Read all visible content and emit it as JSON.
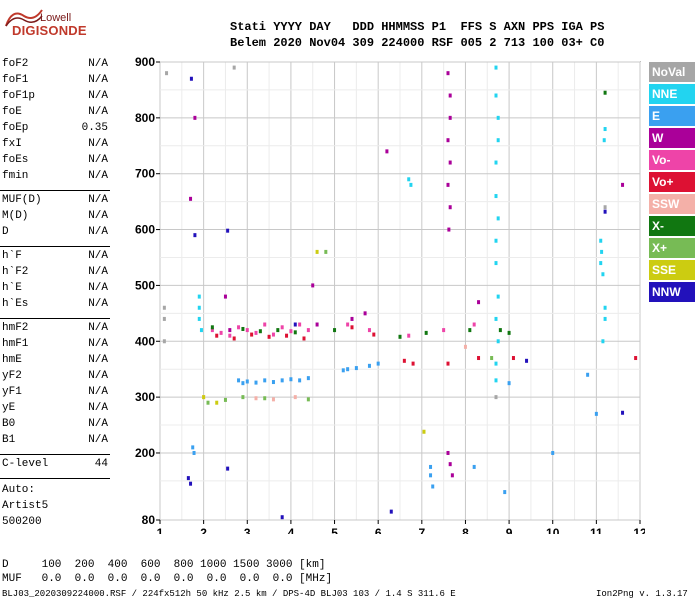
{
  "logo": {
    "line1": "Lowell",
    "line2": "DIGISONDE"
  },
  "header": {
    "line1": "Stati YYYY DAY   DDD HHMMSS P1  FFS S AXN PPS IGA PS",
    "line2": "Belem 2020 Nov04 309 224000 RSF 005 2 713 100 03+ C0"
  },
  "params": {
    "group1": [
      {
        "name": "foF2",
        "value": "N/A"
      },
      {
        "name": "foF1",
        "value": "N/A"
      },
      {
        "name": "foF1p",
        "value": "N/A"
      },
      {
        "name": "foE",
        "value": "N/A"
      },
      {
        "name": "foEp",
        "value": "0.35"
      },
      {
        "name": "fxI",
        "value": "N/A"
      },
      {
        "name": "foEs",
        "value": "N/A"
      },
      {
        "name": "fmin",
        "value": "N/A"
      }
    ],
    "group2": [
      {
        "name": "MUF(D)",
        "value": "N/A"
      },
      {
        "name": "M(D)",
        "value": "N/A"
      },
      {
        "name": "D",
        "value": "N/A"
      }
    ],
    "group3": [
      {
        "name": "h`F",
        "value": "N/A"
      },
      {
        "name": "h`F2",
        "value": "N/A"
      },
      {
        "name": "h`E",
        "value": "N/A"
      },
      {
        "name": "h`Es",
        "value": "N/A"
      }
    ],
    "group4": [
      {
        "name": "hmF2",
        "value": "N/A"
      },
      {
        "name": "hmF1",
        "value": "N/A"
      },
      {
        "name": "hmE",
        "value": "N/A"
      },
      {
        "name": "yF2",
        "value": "N/A"
      },
      {
        "name": "yF1",
        "value": "N/A"
      },
      {
        "name": "yE",
        "value": "N/A"
      },
      {
        "name": "B0",
        "value": "N/A"
      },
      {
        "name": "B1",
        "value": "N/A"
      }
    ],
    "clevel": {
      "name": "C-level",
      "value": "44"
    }
  },
  "autoscale": {
    "line1": "Auto:",
    "line2": "Artist5",
    "line3": "500200"
  },
  "legend": [
    {
      "label": "NoVal",
      "color": "#a6a6a6"
    },
    {
      "label": "NNE",
      "color": "#22d4f0"
    },
    {
      "label": "E",
      "color": "#3aa0f0"
    },
    {
      "label": "W",
      "color": "#aa0099"
    },
    {
      "label": "Vo-",
      "color": "#ee44a8"
    },
    {
      "label": "Vo+",
      "color": "#dd1133"
    },
    {
      "label": "SSW",
      "color": "#f4b0a8"
    },
    {
      "label": "X-",
      "color": "#117711"
    },
    {
      "label": "X+",
      "color": "#77bb55"
    },
    {
      "label": "SSE",
      "color": "#cccc11"
    },
    {
      "label": "NNW",
      "color": "#2211bb"
    }
  ],
  "footer": {
    "d_row": "D     100  200  400  600  800 1000 1500 3000 [km]",
    "muf_row": "MUF   0.0  0.0  0.0  0.0  0.0  0.0  0.0  0.0 [MHz]",
    "info": "BLJ03_2020309224000.RSF / 224fx512h 50 kHz 2.5 km / DPS-4D BLJ03 103 / 1.4 S 311.6 E",
    "version": "Ion2Png v. 1.3.17"
  },
  "chart_data": {
    "type": "scatter",
    "title": "",
    "xlabel": "",
    "ylabel": "",
    "xlim": [
      1,
      12
    ],
    "ylim": [
      80,
      900
    ],
    "x_ticks": [
      1,
      2,
      3,
      4,
      5,
      6,
      7,
      8,
      9,
      10,
      11,
      12
    ],
    "y_ticks": [
      80,
      200,
      300,
      400,
      500,
      600,
      700,
      800,
      900
    ],
    "grid": true,
    "legend_position": "right",
    "series": [
      {
        "name": "NoVal",
        "points": [
          [
            1.1,
            400
          ],
          [
            1.1,
            440
          ],
          [
            1.1,
            460
          ],
          [
            1.15,
            880
          ],
          [
            2.7,
            890
          ],
          [
            8.7,
            300
          ],
          [
            11.2,
            640
          ]
        ]
      },
      {
        "name": "NNE",
        "points": [
          [
            1.9,
            480
          ],
          [
            1.9,
            460
          ],
          [
            1.9,
            440
          ],
          [
            1.95,
            420
          ],
          [
            6.7,
            690
          ],
          [
            6.75,
            680
          ],
          [
            8.7,
            890
          ],
          [
            8.7,
            840
          ],
          [
            8.75,
            800
          ],
          [
            8.75,
            760
          ],
          [
            8.7,
            720
          ],
          [
            8.7,
            660
          ],
          [
            8.75,
            620
          ],
          [
            8.7,
            580
          ],
          [
            8.7,
            540
          ],
          [
            8.75,
            480
          ],
          [
            8.7,
            440
          ],
          [
            8.75,
            400
          ],
          [
            8.7,
            360
          ],
          [
            8.7,
            330
          ],
          [
            11.1,
            580
          ],
          [
            11.12,
            560
          ],
          [
            11.1,
            540
          ],
          [
            11.15,
            520
          ],
          [
            11.2,
            780
          ],
          [
            11.18,
            760
          ],
          [
            11.2,
            460
          ],
          [
            11.2,
            440
          ],
          [
            11.15,
            400
          ]
        ]
      },
      {
        "name": "E",
        "points": [
          [
            1.75,
            210
          ],
          [
            1.78,
            200
          ],
          [
            2.8,
            330
          ],
          [
            2.9,
            325
          ],
          [
            3.0,
            328
          ],
          [
            3.2,
            326
          ],
          [
            3.4,
            330
          ],
          [
            3.6,
            327
          ],
          [
            3.8,
            330
          ],
          [
            4.0,
            332
          ],
          [
            4.2,
            330
          ],
          [
            4.4,
            334
          ],
          [
            5.2,
            348
          ],
          [
            5.3,
            350
          ],
          [
            5.5,
            352
          ],
          [
            5.8,
            356
          ],
          [
            6.0,
            360
          ],
          [
            7.2,
            175
          ],
          [
            7.2,
            160
          ],
          [
            7.25,
            140
          ],
          [
            8.2,
            175
          ],
          [
            8.9,
            130
          ],
          [
            9.0,
            325
          ],
          [
            10.0,
            200
          ],
          [
            10.8,
            340
          ],
          [
            11.0,
            270
          ]
        ]
      },
      {
        "name": "W",
        "points": [
          [
            1.7,
            655
          ],
          [
            1.8,
            800
          ],
          [
            2.5,
            480
          ],
          [
            2.6,
            420
          ],
          [
            4.5,
            500
          ],
          [
            4.6,
            430
          ],
          [
            5.4,
            440
          ],
          [
            5.7,
            450
          ],
          [
            6.2,
            740
          ],
          [
            7.6,
            880
          ],
          [
            7.65,
            840
          ],
          [
            7.65,
            800
          ],
          [
            7.6,
            760
          ],
          [
            7.65,
            720
          ],
          [
            7.6,
            680
          ],
          [
            7.65,
            640
          ],
          [
            7.62,
            600
          ],
          [
            7.65,
            180
          ],
          [
            7.6,
            200
          ],
          [
            7.7,
            160
          ],
          [
            8.3,
            470
          ],
          [
            11.6,
            680
          ]
        ]
      },
      {
        "name": "Vo-",
        "points": [
          [
            2.2,
            420
          ],
          [
            2.4,
            415
          ],
          [
            2.6,
            410
          ],
          [
            2.8,
            425
          ],
          [
            3.0,
            420
          ],
          [
            3.2,
            415
          ],
          [
            3.4,
            430
          ],
          [
            3.6,
            412
          ],
          [
            3.8,
            425
          ],
          [
            4.0,
            418
          ],
          [
            4.2,
            430
          ],
          [
            4.4,
            420
          ],
          [
            5.3,
            430
          ],
          [
            5.8,
            420
          ],
          [
            6.7,
            410
          ],
          [
            7.5,
            420
          ],
          [
            8.2,
            430
          ]
        ]
      },
      {
        "name": "Vo+",
        "points": [
          [
            2.3,
            410
          ],
          [
            2.7,
            405
          ],
          [
            3.1,
            412
          ],
          [
            3.5,
            408
          ],
          [
            3.9,
            410
          ],
          [
            4.3,
            405
          ],
          [
            5.4,
            425
          ],
          [
            5.9,
            412
          ],
          [
            6.6,
            365
          ],
          [
            6.8,
            360
          ],
          [
            7.6,
            360
          ],
          [
            8.3,
            370
          ],
          [
            9.1,
            370
          ],
          [
            11.9,
            370
          ]
        ]
      },
      {
        "name": "SSW",
        "points": [
          [
            2.0,
            300
          ],
          [
            3.2,
            298
          ],
          [
            3.6,
            296
          ],
          [
            4.1,
            300
          ],
          [
            8.0,
            390
          ]
        ]
      },
      {
        "name": "X-",
        "points": [
          [
            2.2,
            425
          ],
          [
            2.9,
            422
          ],
          [
            3.3,
            418
          ],
          [
            3.7,
            420
          ],
          [
            4.1,
            416
          ],
          [
            5.0,
            420
          ],
          [
            6.5,
            408
          ],
          [
            7.1,
            415
          ],
          [
            8.1,
            420
          ],
          [
            8.8,
            420
          ],
          [
            9.0,
            415
          ],
          [
            11.2,
            845
          ]
        ]
      },
      {
        "name": "X+",
        "points": [
          [
            2.1,
            290
          ],
          [
            2.5,
            295
          ],
          [
            2.9,
            300
          ],
          [
            3.4,
            298
          ],
          [
            4.4,
            296
          ],
          [
            4.8,
            560
          ],
          [
            8.6,
            370
          ]
        ]
      },
      {
        "name": "SSE",
        "points": [
          [
            2.0,
            300
          ],
          [
            2.3,
            290
          ],
          [
            7.05,
            238
          ],
          [
            4.6,
            560
          ]
        ]
      },
      {
        "name": "NNW",
        "points": [
          [
            1.65,
            155
          ],
          [
            1.7,
            145
          ],
          [
            1.72,
            870
          ],
          [
            1.8,
            590
          ],
          [
            2.55,
            598
          ],
          [
            2.55,
            172
          ],
          [
            3.8,
            85
          ],
          [
            4.1,
            430
          ],
          [
            6.3,
            95
          ],
          [
            9.4,
            365
          ],
          [
            11.6,
            272
          ],
          [
            11.2,
            632
          ]
        ]
      }
    ]
  }
}
